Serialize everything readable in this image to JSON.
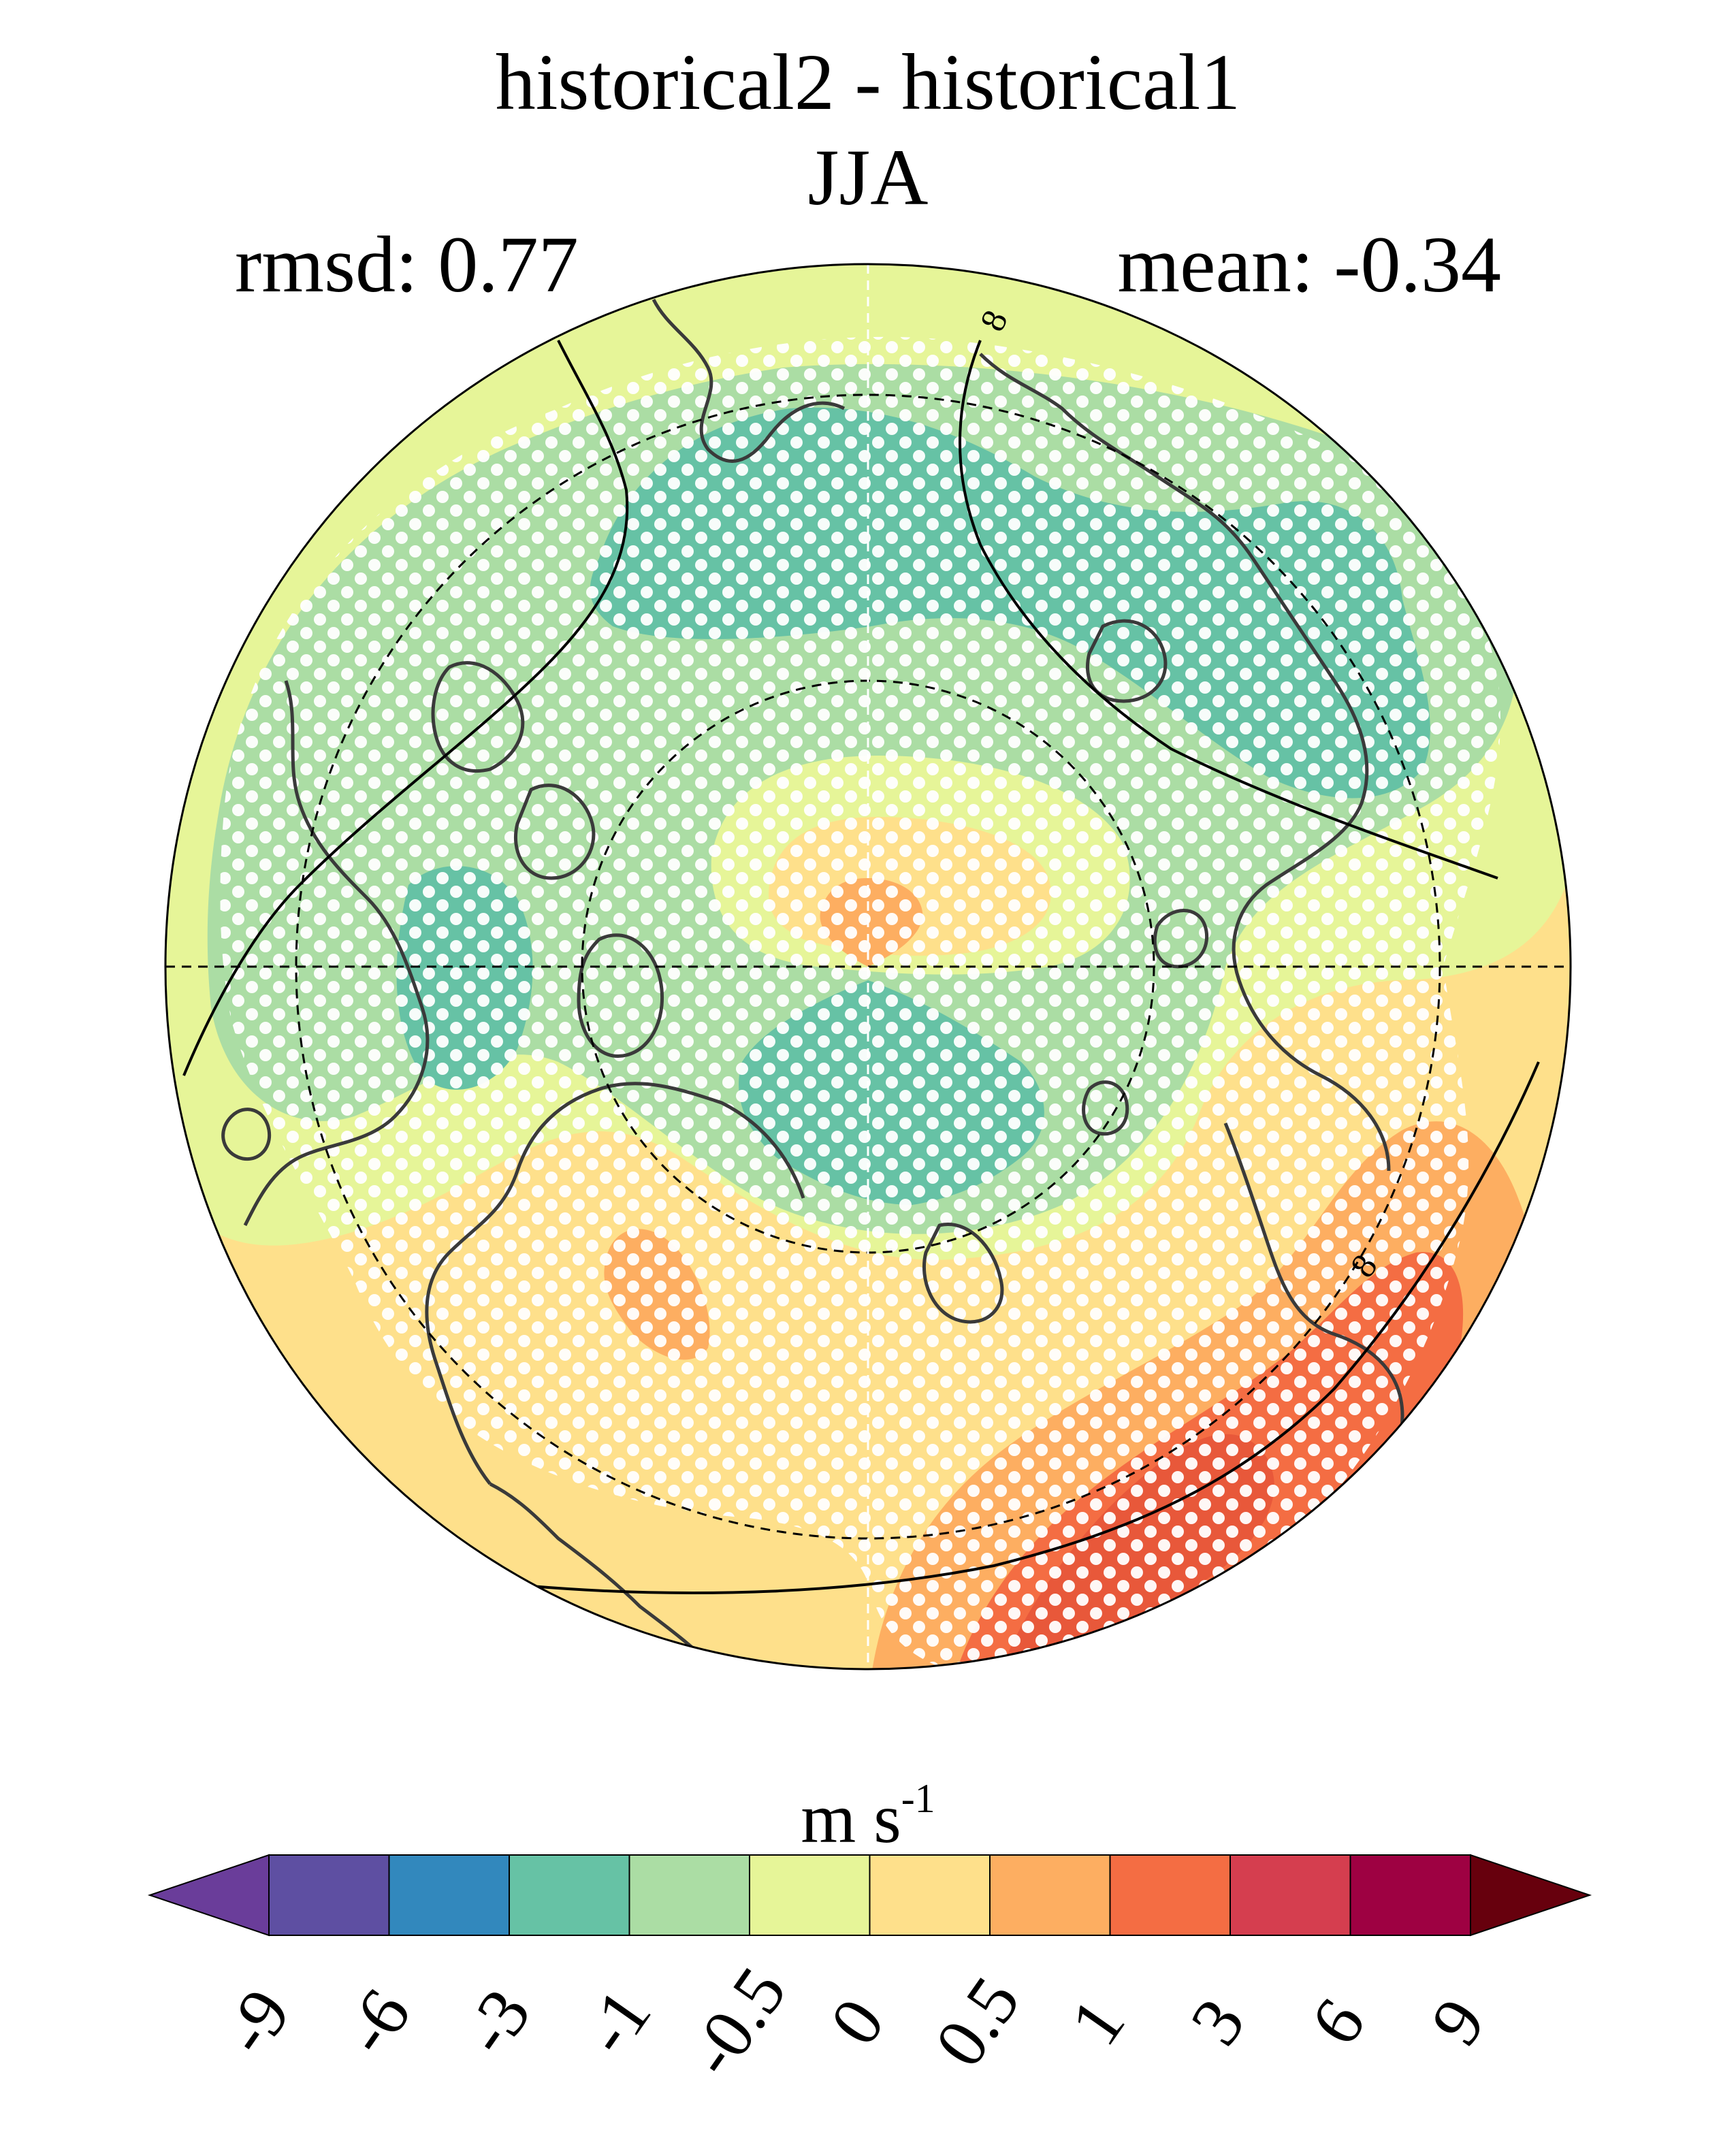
{
  "title": "historical2 - historical1",
  "season": "JJA",
  "rmsd_label": "rmsd: 0.77",
  "mean_label": "mean: -0.34",
  "units": {
    "base": "m s",
    "exponent": "-1"
  },
  "contour_labels": [
    "8",
    "8"
  ],
  "colorbar": {
    "ticks": [
      "-9",
      "-6",
      "-3",
      "-1",
      "-0.5",
      "0",
      "0.5",
      "1",
      "3",
      "6",
      "9"
    ],
    "colors": [
      "#5e4fa2",
      "#3288bd",
      "#66c2a5",
      "#abdda4",
      "#e6f598",
      "#fee08b",
      "#fdae61",
      "#f46d43",
      "#d53e4f",
      "#9e0142"
    ],
    "under_color": "#6a3d9a",
    "over_color": "#67000d"
  },
  "map": {
    "projection": "north polar stereographic",
    "stippling": "white dots (significance)",
    "field_colors": {
      "neg_1": "#66c2a5",
      "neg_05": "#abdda4",
      "neg_0": "#e6f598",
      "pos_0": "#fee08b",
      "pos_05": "#fdae61",
      "pos_1": "#f46d43"
    }
  }
}
